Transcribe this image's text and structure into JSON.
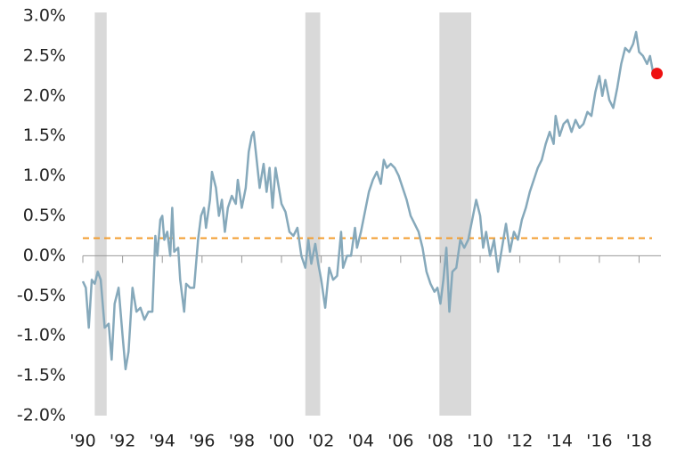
{
  "chart_data": {
    "type": "line",
    "xlim": [
      1990,
      2019.1
    ],
    "ylim": [
      -2,
      3
    ],
    "yticks": [
      {
        "value": -2,
        "label": "-2.0%"
      },
      {
        "value": -1.5,
        "label": "-1.5%"
      },
      {
        "value": -1,
        "label": "-1.0%"
      },
      {
        "value": -0.5,
        "label": "-0.5%"
      },
      {
        "value": 0,
        "label": "0.0%"
      },
      {
        "value": 0.5,
        "label": "0.5%"
      },
      {
        "value": 1,
        "label": "1.0%"
      },
      {
        "value": 1.5,
        "label": "1.5%"
      },
      {
        "value": 2,
        "label": "2.0%"
      },
      {
        "value": 2.5,
        "label": "2.5%"
      },
      {
        "value": 3,
        "label": "3.0%"
      }
    ],
    "xticks": [
      {
        "value": 1990,
        "label": "'90"
      },
      {
        "value": 1992,
        "label": "'92"
      },
      {
        "value": 1994,
        "label": "'94"
      },
      {
        "value": 1996,
        "label": "'96"
      },
      {
        "value": 1998,
        "label": "'98"
      },
      {
        "value": 2000,
        "label": "'00"
      },
      {
        "value": 2002,
        "label": "'02"
      },
      {
        "value": 2004,
        "label": "'04"
      },
      {
        "value": 2006,
        "label": "'06"
      },
      {
        "value": 2008,
        "label": "'08"
      },
      {
        "value": 2010,
        "label": "'10"
      },
      {
        "value": 2012,
        "label": "'12"
      },
      {
        "value": 2014,
        "label": "'14"
      },
      {
        "value": 2016,
        "label": "'16"
      },
      {
        "value": 2018,
        "label": "'18"
      }
    ],
    "shaded_regions": [
      [
        1990.6,
        1991.2
      ],
      [
        2001.2,
        2001.95
      ],
      [
        2007.95,
        2009.55
      ]
    ],
    "shade_color": "#d9d9d9",
    "reference_line": {
      "value": 0.22,
      "color": "#f39c2c"
    },
    "highlight": {
      "x": 2018.9,
      "y": 2.28,
      "color": "#ee1111"
    },
    "series": [
      {
        "color": "#86a9bb",
        "x": [
          1990.0,
          1990.15,
          1990.3,
          1990.45,
          1990.6,
          1990.75,
          1990.9,
          1991.1,
          1991.3,
          1991.45,
          1991.6,
          1991.8,
          1992.0,
          1992.15,
          1992.3,
          1992.5,
          1992.7,
          1992.9,
          1993.1,
          1993.3,
          1993.5,
          1993.65,
          1993.75,
          1993.9,
          1994.0,
          1994.1,
          1994.25,
          1994.4,
          1994.5,
          1994.6,
          1994.8,
          1994.9,
          1995.1,
          1995.2,
          1995.4,
          1995.6,
          1995.8,
          1995.95,
          1996.1,
          1996.2,
          1996.4,
          1996.5,
          1996.7,
          1996.85,
          1997.0,
          1997.15,
          1997.3,
          1997.5,
          1997.7,
          1997.8,
          1998.0,
          1998.2,
          1998.35,
          1998.5,
          1998.6,
          1998.75,
          1998.9,
          1999.1,
          1999.25,
          1999.4,
          1999.55,
          1999.7,
          2000.0,
          2000.2,
          2000.4,
          2000.6,
          2000.8,
          2001.0,
          2001.2,
          2001.35,
          2001.5,
          2001.7,
          2001.85,
          2002.0,
          2002.2,
          2002.4,
          2002.6,
          2002.8,
          2003.0,
          2003.1,
          2003.3,
          2003.5,
          2003.7,
          2003.8,
          2004.0,
          2004.2,
          2004.4,
          2004.6,
          2004.8,
          2005.0,
          2005.15,
          2005.3,
          2005.5,
          2005.7,
          2005.9,
          2006.1,
          2006.3,
          2006.5,
          2006.7,
          2006.9,
          2007.1,
          2007.3,
          2007.5,
          2007.7,
          2007.85,
          2008.0,
          2008.15,
          2008.3,
          2008.45,
          2008.6,
          2008.8,
          2009.0,
          2009.2,
          2009.4,
          2009.6,
          2009.8,
          2010.0,
          2010.15,
          2010.3,
          2010.5,
          2010.7,
          2010.9,
          2011.1,
          2011.3,
          2011.5,
          2011.7,
          2011.9,
          2012.1,
          2012.3,
          2012.5,
          2012.7,
          2012.9,
          2013.1,
          2013.3,
          2013.5,
          2013.7,
          2013.8,
          2014.0,
          2014.2,
          2014.4,
          2014.6,
          2014.8,
          2015.0,
          2015.2,
          2015.4,
          2015.6,
          2015.8,
          2016.0,
          2016.15,
          2016.3,
          2016.5,
          2016.7,
          2016.9,
          2017.1,
          2017.3,
          2017.5,
          2017.7,
          2017.85,
          2018.0,
          2018.2,
          2018.4,
          2018.55,
          2018.7,
          2018.9
        ],
        "values": [
          -0.32,
          -0.4,
          -0.9,
          -0.3,
          -0.35,
          -0.2,
          -0.3,
          -0.9,
          -0.85,
          -1.3,
          -0.6,
          -0.4,
          -1.0,
          -1.42,
          -1.2,
          -0.4,
          -0.7,
          -0.65,
          -0.8,
          -0.7,
          -0.7,
          0.25,
          0.0,
          0.45,
          0.5,
          0.2,
          0.3,
          0.0,
          0.6,
          0.05,
          0.1,
          -0.3,
          -0.7,
          -0.35,
          -0.4,
          -0.4,
          0.2,
          0.5,
          0.6,
          0.35,
          0.7,
          1.05,
          0.85,
          0.5,
          0.7,
          0.3,
          0.6,
          0.75,
          0.65,
          0.95,
          0.6,
          0.85,
          1.3,
          1.5,
          1.55,
          1.2,
          0.85,
          1.15,
          0.8,
          1.1,
          0.6,
          1.1,
          0.65,
          0.55,
          0.3,
          0.25,
          0.35,
          0.0,
          -0.15,
          0.2,
          -0.1,
          0.15,
          -0.1,
          -0.3,
          -0.65,
          -0.15,
          -0.3,
          -0.25,
          0.3,
          -0.15,
          0.0,
          0.0,
          0.35,
          0.1,
          0.3,
          0.55,
          0.8,
          0.95,
          1.05,
          0.9,
          1.2,
          1.1,
          1.15,
          1.1,
          1.0,
          0.85,
          0.7,
          0.5,
          0.4,
          0.3,
          0.1,
          -0.2,
          -0.35,
          -0.45,
          -0.4,
          -0.6,
          -0.3,
          0.1,
          -0.7,
          -0.2,
          -0.15,
          0.2,
          0.1,
          0.2,
          0.45,
          0.7,
          0.5,
          0.1,
          0.3,
          0.0,
          0.2,
          -0.2,
          0.1,
          0.4,
          0.05,
          0.3,
          0.2,
          0.45,
          0.6,
          0.8,
          0.95,
          1.1,
          1.2,
          1.4,
          1.55,
          1.4,
          1.75,
          1.5,
          1.65,
          1.7,
          1.55,
          1.7,
          1.6,
          1.65,
          1.8,
          1.75,
          2.05,
          2.25,
          2.0,
          2.2,
          1.95,
          1.85,
          2.1,
          2.4,
          2.6,
          2.55,
          2.65,
          2.8,
          2.55,
          2.5,
          2.4,
          2.5,
          2.3,
          2.28
        ]
      }
    ]
  }
}
